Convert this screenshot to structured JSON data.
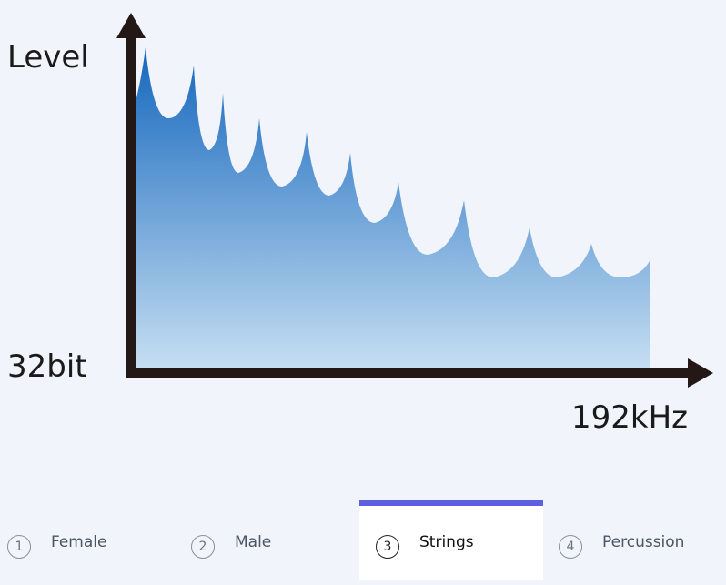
{
  "illustration": {
    "y_label": "Level",
    "origin_label": "32bit",
    "x_label": "192kHz"
  },
  "tabs": [
    {
      "number": 1,
      "label": "Female",
      "selected": false
    },
    {
      "number": 2,
      "label": "Male",
      "selected": false
    },
    {
      "number": 3,
      "label": "Strings",
      "selected": true
    },
    {
      "number": 4,
      "label": "Percussion",
      "selected": false
    }
  ]
}
